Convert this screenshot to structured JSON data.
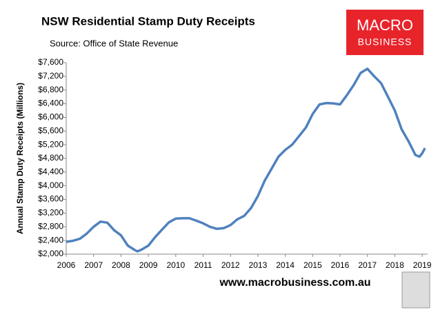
{
  "chart_data": {
    "type": "line",
    "title": "NSW Residential Stamp Duty Receipts",
    "subtitle": "Source: Office of State Revenue",
    "y_label": "Annual Stamp Duty Receipts (Millions)",
    "logo": [
      "MACRO",
      "BUSINESS"
    ],
    "footer": "www.macrobusiness.com.au",
    "xlim": [
      2006,
      2019.2
    ],
    "xticks": [
      2006,
      2007,
      2008,
      2009,
      2010,
      2011,
      2012,
      2013,
      2014,
      2015,
      2016,
      2017,
      2018,
      2019
    ],
    "ylim": [
      2000,
      7600
    ],
    "yticks": [
      {
        "value": 2000,
        "label": "$2,000"
      },
      {
        "value": 2400,
        "label": "$2,400"
      },
      {
        "value": 2800,
        "label": "$2,800"
      },
      {
        "value": 3200,
        "label": "$3,200"
      },
      {
        "value": 3600,
        "label": "$3,600"
      },
      {
        "value": 4000,
        "label": "$4,000"
      },
      {
        "value": 4400,
        "label": "$4,400"
      },
      {
        "value": 4800,
        "label": "$4,800"
      },
      {
        "value": 5200,
        "label": "$5,200"
      },
      {
        "value": 5600,
        "label": "$5,600"
      },
      {
        "value": 6000,
        "label": "$6,000"
      },
      {
        "value": 6400,
        "label": "$6,400"
      },
      {
        "value": 6800,
        "label": "$6,800"
      },
      {
        "value": 7200,
        "label": "$7,200"
      },
      {
        "value": 7600,
        "label": "$7,600"
      }
    ],
    "x": [
      2006.0,
      2006.25,
      2006.5,
      2006.75,
      2007.0,
      2007.25,
      2007.5,
      2007.75,
      2008.0,
      2008.25,
      2008.5,
      2008.6,
      2008.75,
      2009.0,
      2009.25,
      2009.5,
      2009.75,
      2010.0,
      2010.25,
      2010.5,
      2010.75,
      2011.0,
      2011.25,
      2011.5,
      2011.75,
      2012.0,
      2012.25,
      2012.5,
      2012.75,
      2013.0,
      2013.25,
      2013.5,
      2013.75,
      2014.0,
      2014.25,
      2014.5,
      2014.75,
      2015.0,
      2015.25,
      2015.5,
      2015.75,
      2016.0,
      2016.25,
      2016.5,
      2016.75,
      2017.0,
      2017.25,
      2017.5,
      2017.75,
      2018.0,
      2018.25,
      2018.5,
      2018.75,
      2018.9,
      2019.0,
      2019.1
    ],
    "series": [
      {
        "name": "Receipts",
        "color": "#4f81bd",
        "values": [
          2360,
          2390,
          2450,
          2600,
          2800,
          2950,
          2920,
          2700,
          2550,
          2250,
          2120,
          2080,
          2130,
          2250,
          2500,
          2720,
          2930,
          3040,
          3050,
          3050,
          2980,
          2900,
          2800,
          2740,
          2760,
          2850,
          3020,
          3120,
          3350,
          3700,
          4150,
          4500,
          4850,
          5050,
          5200,
          5450,
          5700,
          6100,
          6380,
          6420,
          6410,
          6380,
          6650,
          6950,
          7300,
          7420,
          7200,
          7000,
          6600,
          6200,
          5650,
          5300,
          4900,
          4850,
          4950,
          5100
        ]
      }
    ]
  }
}
